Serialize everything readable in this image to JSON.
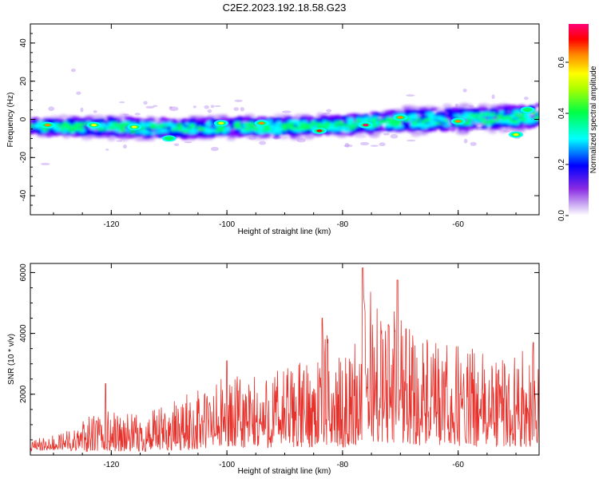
{
  "figure": {
    "title": "C2E2.2023.192.18.58.G23"
  },
  "chart_data": [
    {
      "type": "heatmap",
      "xlabel": "Height of straight line (km)",
      "ylabel": "Frequency (Hz)",
      "xlim": [
        -134,
        -46
      ],
      "ylim": [
        -50,
        50
      ],
      "x_ticks": [
        -120,
        -100,
        -80,
        -60
      ],
      "y_ticks": [
        -40,
        -20,
        0,
        20,
        40
      ],
      "colorbar": {
        "label": "Normalized spectral amplitude",
        "range": [
          0.0,
          0.75
        ],
        "ticks": [
          0.0,
          0.2,
          0.4,
          0.6
        ],
        "colormap": [
          "#ffffff",
          "#b98cf2",
          "#7a00ff",
          "#0000ff",
          "#00ffff",
          "#00ff66",
          "#ffff00",
          "#ff8800",
          "#ff0000",
          "#ff0077"
        ]
      },
      "band": {
        "x": [
          -134,
          -120,
          -110,
          -100,
          -90,
          -80,
          -70,
          -60,
          -50,
          -46
        ],
        "center_hz": [
          -4,
          -4,
          -5,
          -4,
          -4,
          -3,
          -1,
          0,
          1,
          2
        ],
        "half_width_hz": [
          4,
          5,
          5,
          5,
          5,
          5,
          6,
          6,
          6,
          6
        ]
      },
      "hot_spots": [
        {
          "x": -131,
          "y": -3,
          "v": 0.55
        },
        {
          "x": -123,
          "y": -3,
          "v": 0.5
        },
        {
          "x": -116,
          "y": -4,
          "v": 0.48
        },
        {
          "x": -110,
          "y": -10,
          "v": 0.45
        },
        {
          "x": -101,
          "y": -2,
          "v": 0.5
        },
        {
          "x": -94,
          "y": -2,
          "v": 0.6
        },
        {
          "x": -84,
          "y": -6,
          "v": 0.7
        },
        {
          "x": -76,
          "y": -3,
          "v": 0.72
        },
        {
          "x": -70,
          "y": 1,
          "v": 0.55
        },
        {
          "x": -60,
          "y": -1,
          "v": 0.6
        },
        {
          "x": -50,
          "y": -8,
          "v": 0.5
        },
        {
          "x": -48,
          "y": 5,
          "v": 0.45
        }
      ]
    },
    {
      "type": "line",
      "xlabel": "Height of straight line (km)",
      "ylabel": "SNR (10 * v/v)",
      "xlim": [
        -134,
        -46
      ],
      "ylim": [
        0,
        6300
      ],
      "x_ticks": [
        -120,
        -100,
        -80,
        -60
      ],
      "y_ticks": [
        2000,
        4000,
        6000
      ],
      "series": [
        {
          "color": "#e8302a",
          "envelope_x": [
            -134,
            -128,
            -124,
            -120,
            -115,
            -110,
            -105,
            -100,
            -95,
            -90,
            -85,
            -83,
            -80,
            -77,
            -76,
            -73,
            -70,
            -67,
            -63,
            -60,
            -55,
            -50,
            -46
          ],
          "envelope_y": [
            500,
            750,
            1300,
            1500,
            1300,
            1700,
            2200,
            2600,
            2600,
            3000,
            3200,
            4100,
            3000,
            4200,
            6100,
            4600,
            5200,
            4000,
            3600,
            3700,
            3300,
            3400,
            3500
          ],
          "peaks": [
            {
              "x": -121,
              "y": 2350
            },
            {
              "x": -100,
              "y": 3100
            },
            {
              "x": -83.5,
              "y": 4500
            },
            {
              "x": -76.5,
              "y": 6150
            },
            {
              "x": -70.5,
              "y": 5750
            },
            {
              "x": -69,
              "y": 4150
            },
            {
              "x": -72,
              "y": 4250
            },
            {
              "x": -47,
              "y": 3700
            }
          ]
        }
      ]
    }
  ]
}
